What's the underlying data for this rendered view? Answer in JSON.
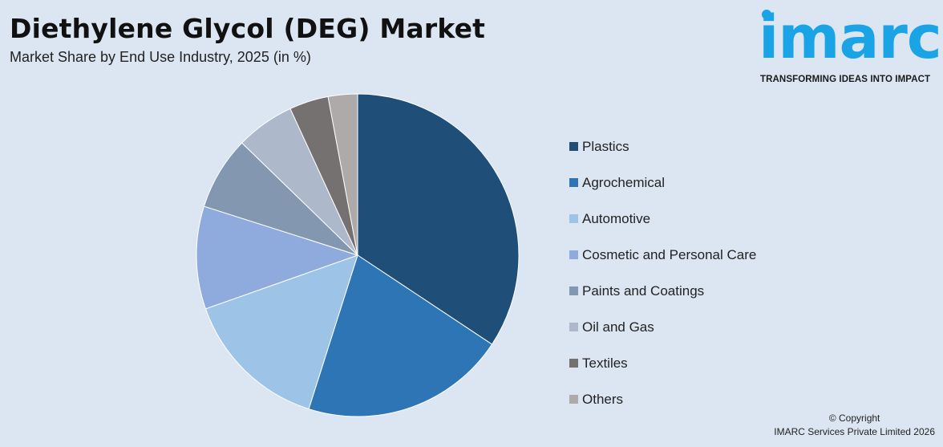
{
  "header": {
    "title": "Diethylene Glycol (DEG) Market",
    "subtitle": "Market Share by End Use Industry, 2025 (in %)"
  },
  "logo": {
    "text": "imarc",
    "tagline": "TRANSFORMING IDEAS INTO IMPACT",
    "color": "#1aa4e6"
  },
  "chart_data": {
    "type": "pie",
    "title": "Diethylene Glycol (DEG) Market",
    "subtitle": "Market Share by End Use Industry, 2025 (in %)",
    "start_angle_deg": 0,
    "direction": "clockwise",
    "legend_position": "right",
    "slices": [
      {
        "label": "Plastics",
        "value": 35,
        "color": "#1f4e79"
      },
      {
        "label": "Agrochemical",
        "value": 21,
        "color": "#2e75b6"
      },
      {
        "label": "Automotive",
        "value": 15,
        "color": "#9dc3e6"
      },
      {
        "label": "Cosmetic and Personal Care",
        "value": 10.5,
        "color": "#8faadc"
      },
      {
        "label": "Paints and Coatings",
        "value": 7.5,
        "color": "#8497b0"
      },
      {
        "label": "Oil and Gas",
        "value": 6,
        "color": "#adb9ca"
      },
      {
        "label": "Textiles",
        "value": 4,
        "color": "#767171"
      },
      {
        "label": "Others",
        "value": 3,
        "color": "#aeaaaa"
      }
    ]
  },
  "footer": {
    "copyright_line1": "© Copyright",
    "copyright_line2": "IMARC Services Private Limited 2026"
  }
}
